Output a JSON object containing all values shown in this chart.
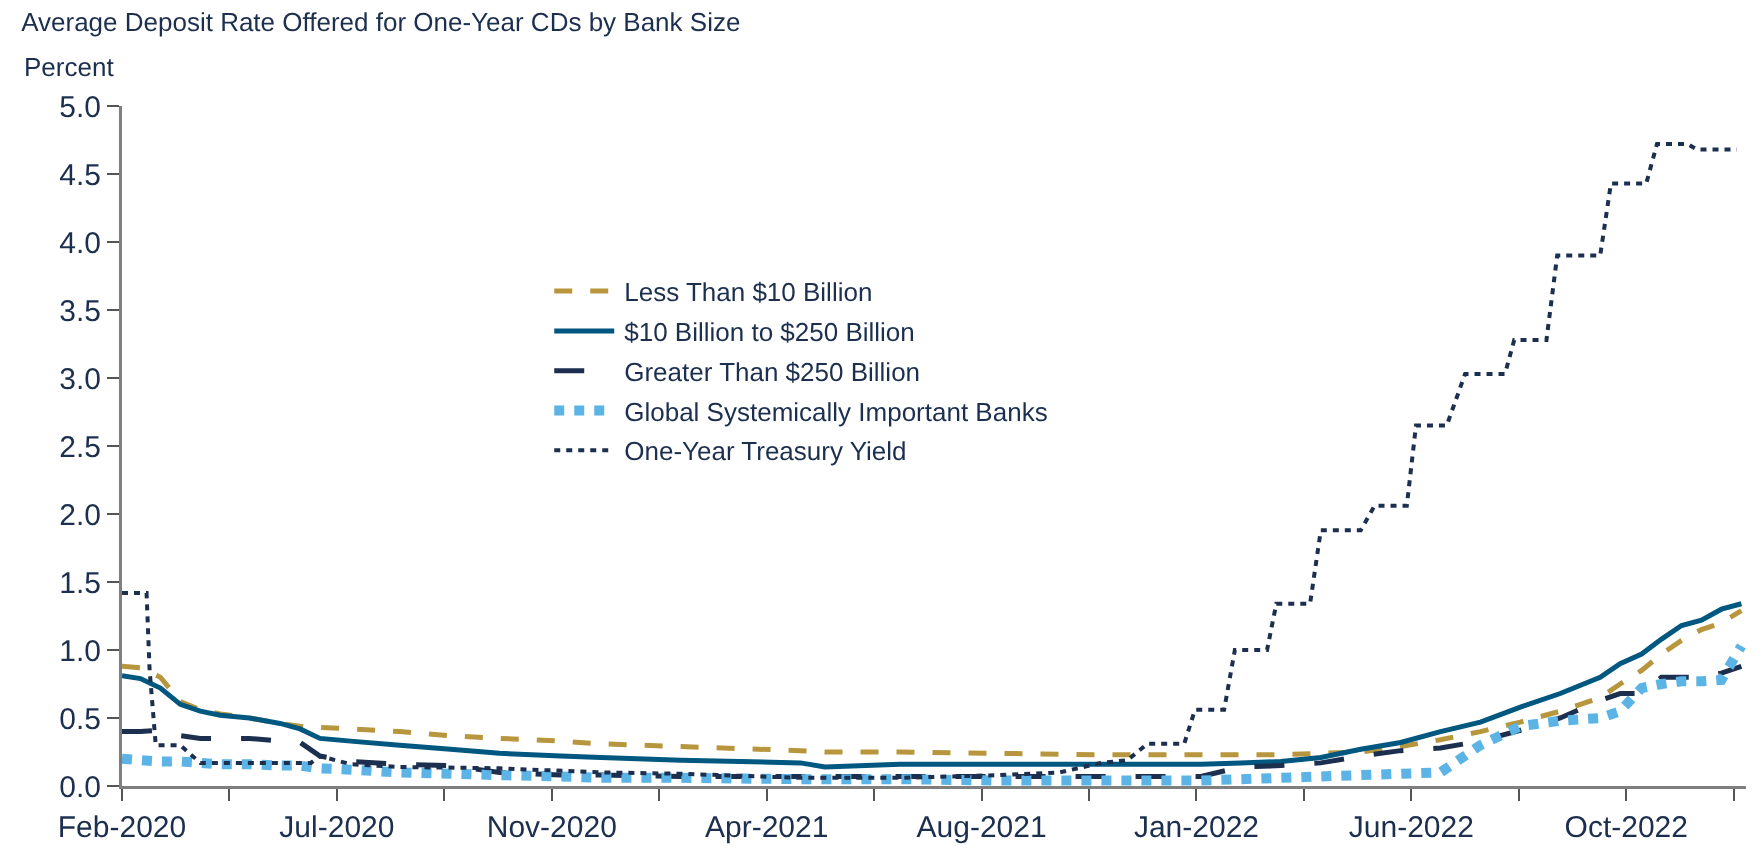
{
  "chart_data": {
    "type": "line",
    "title": "Average Deposit Rate Offered for One-Year CDs by Bank Size",
    "ylabel": "Percent",
    "x": [
      "2020-02-14",
      "2020-02-26",
      "2020-03-10",
      "2020-03-23",
      "2020-04-05",
      "2020-04-18",
      "2020-05-07",
      "2020-05-27",
      "2020-06-09",
      "2020-06-22",
      "2020-07-12",
      "2020-08-13",
      "2020-09-15",
      "2020-10-17",
      "2020-11-26",
      "2020-12-22",
      "2021-02-12",
      "2021-05-01",
      "2021-05-17",
      "2021-07-05",
      "2021-09-08",
      "2021-11-13",
      "2022-01-17",
      "2022-02-12",
      "2022-03-10",
      "2022-04-05",
      "2022-05-01",
      "2022-05-27",
      "2022-06-22",
      "2022-07-18",
      "2022-08-13",
      "2022-09-08",
      "2022-10-04",
      "2022-10-17",
      "2022-10-31",
      "2022-11-13",
      "2022-11-26",
      "2022-12-09",
      "2022-12-22",
      "2023-01-04"
    ],
    "series": [
      {
        "name": "Less Than $10 Billion",
        "color": "#b8963e",
        "line_style": "dashed",
        "values": [
          0.88,
          0.87,
          0.8,
          0.62,
          0.56,
          0.53,
          0.5,
          0.46,
          0.44,
          0.43,
          0.42,
          0.4,
          0.37,
          0.35,
          0.33,
          0.31,
          0.29,
          0.26,
          0.25,
          0.25,
          0.24,
          0.23,
          0.23,
          0.23,
          0.23,
          0.24,
          0.25,
          0.29,
          0.34,
          0.4,
          0.47,
          0.55,
          0.65,
          0.75,
          0.85,
          0.97,
          1.07,
          1.15,
          1.2,
          1.29
        ]
      },
      {
        "name": "$10 Billion to $250 Billion",
        "color": "#00577f",
        "line_style": "solid",
        "values": [
          0.81,
          0.79,
          0.72,
          0.6,
          0.55,
          0.52,
          0.5,
          0.46,
          0.42,
          0.35,
          0.33,
          0.3,
          0.27,
          0.24,
          0.22,
          0.21,
          0.19,
          0.17,
          0.14,
          0.16,
          0.16,
          0.16,
          0.16,
          0.17,
          0.18,
          0.21,
          0.27,
          0.32,
          0.4,
          0.47,
          0.58,
          0.68,
          0.8,
          0.9,
          0.97,
          1.08,
          1.18,
          1.22,
          1.3,
          1.34
        ]
      },
      {
        "name": "Greater Than $250 Billion",
        "color": "#1c2f4e",
        "line_style": "dashed",
        "values": [
          0.4,
          0.4,
          0.41,
          0.37,
          0.35,
          0.35,
          0.35,
          0.33,
          0.32,
          0.22,
          0.18,
          0.16,
          0.15,
          0.1,
          0.08,
          0.08,
          0.07,
          0.07,
          0.07,
          0.07,
          0.07,
          0.07,
          0.07,
          0.14,
          0.15,
          0.17,
          0.22,
          0.26,
          0.28,
          0.33,
          0.41,
          0.5,
          0.63,
          0.68,
          0.68,
          0.8,
          0.8,
          0.8,
          0.83,
          0.88
        ]
      },
      {
        "name": "Global Systemically Important Banks",
        "color": "#5bb4e5",
        "line_style": "dotted",
        "values": [
          0.2,
          0.19,
          0.18,
          0.18,
          0.17,
          0.16,
          0.16,
          0.15,
          0.15,
          0.13,
          0.12,
          0.1,
          0.09,
          0.08,
          0.07,
          0.06,
          0.06,
          0.05,
          0.05,
          0.05,
          0.04,
          0.04,
          0.04,
          0.05,
          0.06,
          0.07,
          0.08,
          0.09,
          0.1,
          0.3,
          0.44,
          0.48,
          0.5,
          0.55,
          0.72,
          0.75,
          0.77,
          0.77,
          0.78,
          1.03
        ]
      },
      {
        "name": "One-Year Treasury Yield",
        "color": "#1c2f4e",
        "line_style": "dotted",
        "x": [
          "2020-02-14",
          "2020-03-01",
          "2020-03-03",
          "2020-03-07",
          "2020-03-23",
          "2020-04-05",
          "2020-06-16",
          "2020-06-22",
          "2020-07-12",
          "2020-08-13",
          "2020-10-17",
          "2020-12-22",
          "2021-02-12",
          "2021-05-01",
          "2021-07-05",
          "2021-09-08",
          "2021-10-17",
          "2021-11-13",
          "2021-11-30",
          "2021-12-13",
          "2022-01-06",
          "2022-01-13",
          "2022-02-01",
          "2022-02-08",
          "2022-03-01",
          "2022-03-07",
          "2022-03-29",
          "2022-04-05",
          "2022-05-01",
          "2022-05-10",
          "2022-05-31",
          "2022-06-06",
          "2022-06-26",
          "2022-07-08",
          "2022-08-03",
          "2022-08-09",
          "2022-08-30",
          "2022-09-06",
          "2022-10-04",
          "2022-10-11",
          "2022-11-03",
          "2022-11-10",
          "2022-11-30",
          "2022-12-06",
          "2023-01-01"
        ],
        "values": [
          1.42,
          1.42,
          0.85,
          0.3,
          0.3,
          0.17,
          0.17,
          0.22,
          0.16,
          0.14,
          0.13,
          0.1,
          0.09,
          0.06,
          0.06,
          0.08,
          0.1,
          0.17,
          0.19,
          0.31,
          0.31,
          0.56,
          0.56,
          1.0,
          1.0,
          1.34,
          1.34,
          1.88,
          1.88,
          2.06,
          2.06,
          2.65,
          2.65,
          3.03,
          3.03,
          3.28,
          3.28,
          3.9,
          3.9,
          4.43,
          4.43,
          4.72,
          4.72,
          4.68,
          4.68
        ]
      }
    ],
    "xlim": [
      "2020-02-14",
      "2023-01-07"
    ],
    "xticks": [
      {
        "value": "2020-02-14",
        "label": "Feb-2020"
      },
      {
        "value": "2020-04-24",
        "label": null
      },
      {
        "value": "2020-07-03",
        "label": "Jul-2020"
      },
      {
        "value": "2020-09-11",
        "label": null
      },
      {
        "value": "2020-11-20",
        "label": "Nov-2020"
      },
      {
        "value": "2021-01-29",
        "label": null
      },
      {
        "value": "2021-04-09",
        "label": "Apr-2021"
      },
      {
        "value": "2021-06-18",
        "label": null
      },
      {
        "value": "2021-08-27",
        "label": "Aug-2021"
      },
      {
        "value": "2021-11-05",
        "label": null
      },
      {
        "value": "2022-01-14",
        "label": "Jan-2022"
      },
      {
        "value": "2022-03-25",
        "label": null
      },
      {
        "value": "2022-06-03",
        "label": "Jun-2022"
      },
      {
        "value": "2022-08-12",
        "label": null
      },
      {
        "value": "2022-10-21",
        "label": "Oct-2022"
      },
      {
        "value": "2022-12-30",
        "label": null
      }
    ],
    "ylim": [
      0,
      5
    ],
    "yticks": [
      {
        "value": 0,
        "label": "0.0"
      },
      {
        "value": 0.5,
        "label": "0.5"
      },
      {
        "value": 1,
        "label": "1.0"
      },
      {
        "value": 1.5,
        "label": "1.5"
      },
      {
        "value": 2,
        "label": "2.0"
      },
      {
        "value": 2.5,
        "label": "2.5"
      },
      {
        "value": 3,
        "label": "3.0"
      },
      {
        "value": 3.5,
        "label": "3.5"
      },
      {
        "value": 4,
        "label": "4.0"
      },
      {
        "value": 4.5,
        "label": "4.5"
      },
      {
        "value": 5,
        "label": "5.0"
      }
    ],
    "grid": false,
    "legend": "center",
    "marker": "none"
  }
}
